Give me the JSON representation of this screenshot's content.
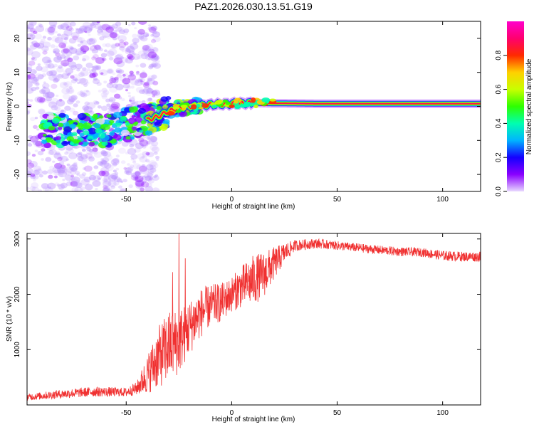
{
  "title": "PAZ1.2026.030.13.51.G19",
  "chart_data": [
    {
      "type": "heatmap",
      "xlabel": "Height of straight line (km)",
      "ylabel": "Frequency (Hz)",
      "xlim": [
        -97,
        118
      ],
      "ylim": [
        -25,
        25
      ],
      "xticks": [
        -50,
        0,
        50,
        100
      ],
      "xtick_labels": [
        "-50",
        "0",
        "50",
        "100"
      ],
      "yticks": [
        -20,
        -10,
        0,
        10,
        20
      ],
      "ytick_labels": [
        "-20",
        "-10",
        "0",
        "10",
        "20"
      ],
      "colorbar": {
        "label": "Normalized spectral amplitude",
        "ticks": [
          0.0,
          0.2,
          0.4,
          0.6,
          0.8
        ],
        "tick_labels": [
          "0.0",
          "0.2",
          "0.4",
          "0.6",
          "0.8"
        ],
        "colors": [
          "#e8d8ff",
          "#8a00ff",
          "#1400ff",
          "#00b4ff",
          "#00ffb0",
          "#2eff00",
          "#c8ff00",
          "#ffd000",
          "#ff2a00",
          "#ff006e",
          "#ff00cc"
        ]
      },
      "ridge_frequency": [
        [
          -55,
          -7
        ],
        [
          -50,
          -5.5
        ],
        [
          -45,
          -4.5
        ],
        [
          -40,
          -4
        ],
        [
          -35,
          -3
        ],
        [
          -30,
          -1.5
        ],
        [
          -25,
          -0.5
        ],
        [
          -20,
          0
        ],
        [
          -10,
          0.5
        ],
        [
          0,
          0.8
        ],
        [
          10,
          1
        ],
        [
          20,
          0.9
        ],
        [
          40,
          0.8
        ],
        [
          60,
          0.8
        ],
        [
          80,
          0.8
        ],
        [
          100,
          0.8
        ],
        [
          118,
          0.8
        ]
      ]
    },
    {
      "type": "line",
      "xlabel": "Height of straight line (km)",
      "ylabel": "SNR (10 * v/v)",
      "xlim": [
        -97,
        118
      ],
      "ylim": [
        0,
        3100
      ],
      "xticks": [
        -50,
        0,
        50,
        100
      ],
      "xtick_labels": [
        "-50",
        "0",
        "50",
        "100"
      ],
      "yticks": [
        1000,
        2000,
        3000
      ],
      "ytick_labels": [
        "1000",
        "2000",
        "3000"
      ],
      "color": "#f03030",
      "x": [
        -97,
        -80,
        -65,
        -50,
        -45,
        -40,
        -35,
        -30,
        -25,
        -20,
        -15,
        -10,
        -5,
        0,
        5,
        10,
        15,
        20,
        25,
        30,
        40,
        50,
        60,
        70,
        80,
        90,
        100,
        110,
        118
      ],
      "mean": [
        140,
        200,
        240,
        230,
        300,
        550,
        850,
        1050,
        1150,
        1400,
        1650,
        1800,
        1850,
        2000,
        2150,
        2250,
        2350,
        2550,
        2750,
        2880,
        2920,
        2880,
        2840,
        2800,
        2770,
        2760,
        2700,
        2680,
        2680
      ],
      "amp": [
        60,
        80,
        90,
        80,
        120,
        350,
        550,
        650,
        600,
        500,
        450,
        380,
        350,
        320,
        380,
        450,
        420,
        300,
        180,
        100,
        90,
        80,
        80,
        80,
        80,
        80,
        90,
        90,
        90
      ],
      "spikes": [
        [
          -25,
          3100
        ],
        [
          -22,
          2650
        ],
        [
          -28,
          2400
        ]
      ]
    }
  ]
}
